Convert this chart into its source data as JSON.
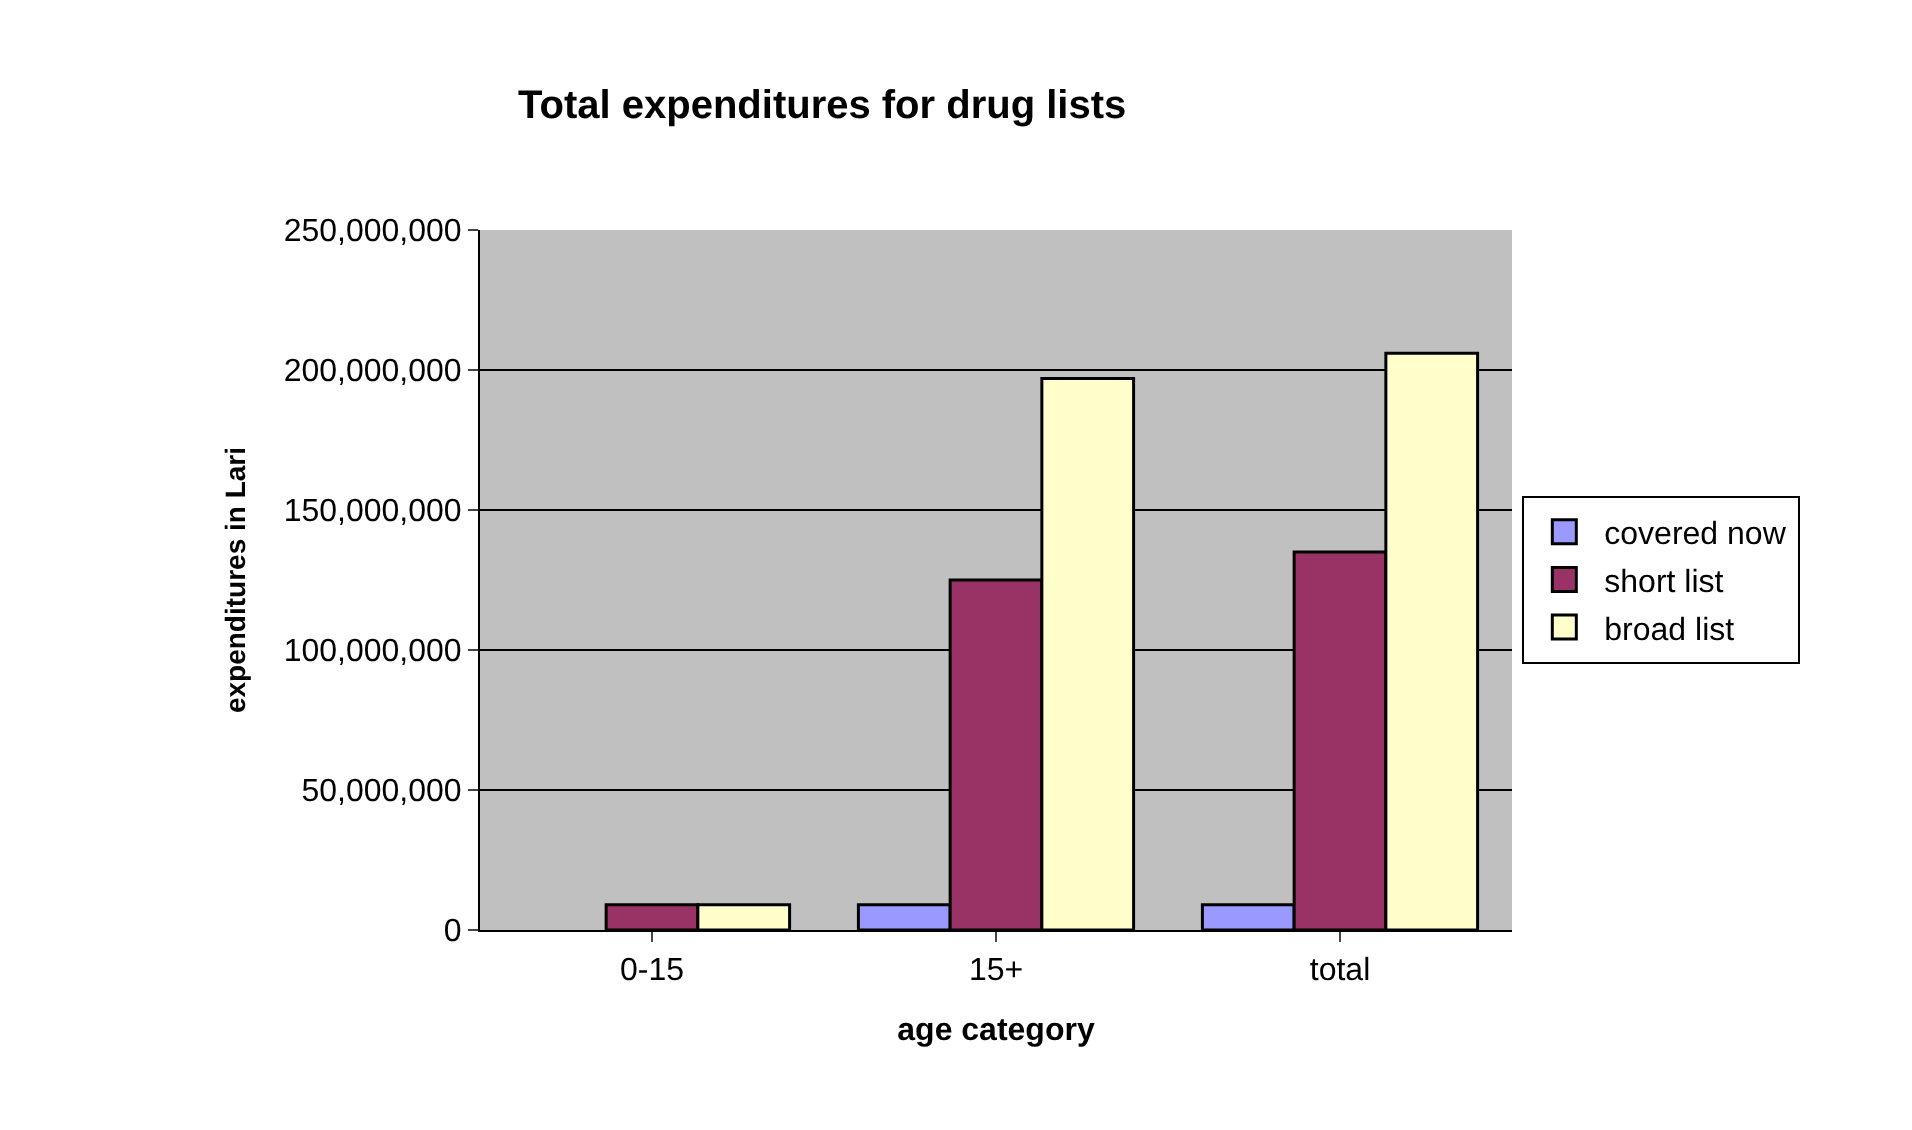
{
  "chart_data": {
    "type": "bar",
    "title": "Total expenditures for drug lists",
    "xlabel": "age category",
    "ylabel": "expenditures in Lari",
    "categories": [
      "0-15",
      "15+",
      "total"
    ],
    "series": [
      {
        "name": "covered now",
        "color": "#9999ff",
        "values": [
          null,
          9000000,
          9000000
        ]
      },
      {
        "name": "short list",
        "color": "#993366",
        "values": [
          9000000,
          125000000,
          135000000
        ]
      },
      {
        "name": "broad list",
        "color": "#ffffcc",
        "values": [
          9000000,
          197000000,
          206000000
        ]
      }
    ],
    "ylim": [
      0,
      250000000
    ],
    "yticks": [
      {
        "value": 0,
        "label": "0"
      },
      {
        "value": 50000000,
        "label": "50,000,000"
      },
      {
        "value": 100000000,
        "label": "100,000,000"
      },
      {
        "value": 150000000,
        "label": "150,000,000"
      },
      {
        "value": 200000000,
        "label": "200,000,000"
      },
      {
        "value": 250000000,
        "label": "250,000,000"
      }
    ],
    "grid": "y",
    "legend": "right"
  }
}
